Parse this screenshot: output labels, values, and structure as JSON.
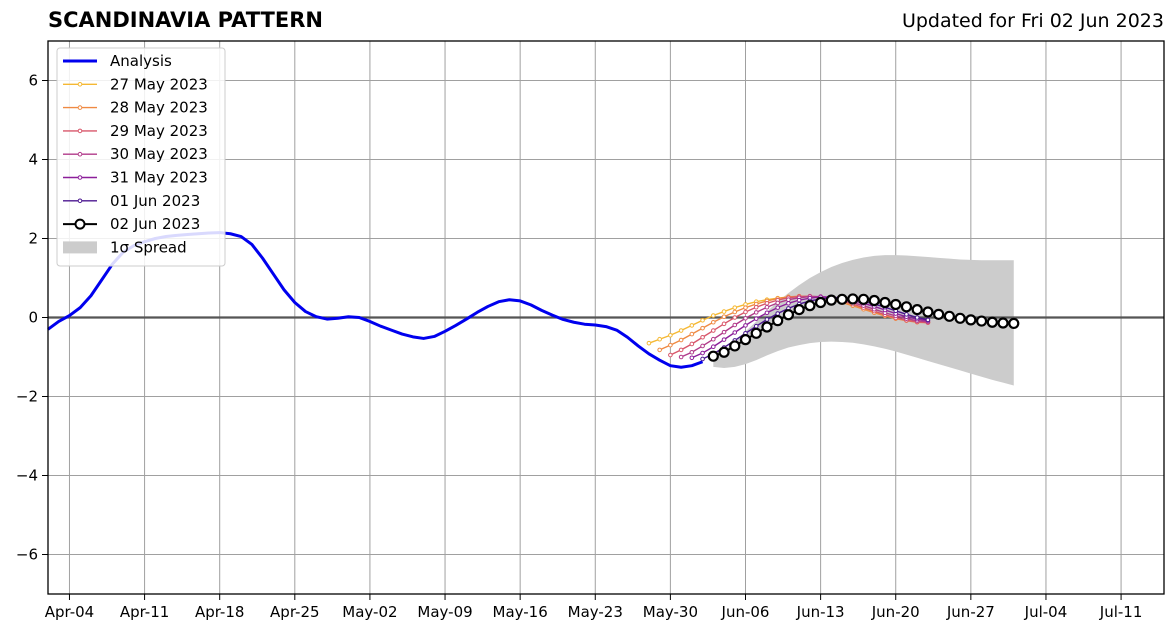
{
  "header": {
    "title": "SCANDINAVIA PATTERN",
    "updated": "Updated for Fri 02 Jun 2023"
  },
  "chart_data": {
    "type": "line",
    "title": "SCANDINAVIA PATTERN",
    "subtitle": "Updated for Fri 02 Jun 2023",
    "xlabel": "",
    "ylabel": "",
    "xlim": [
      "2023-04-02",
      "2023-07-15"
    ],
    "ylim": [
      -7,
      7
    ],
    "grid": true,
    "legend_position": "top-left",
    "x_ticks": [
      "2023-04-04",
      "2023-04-11",
      "2023-04-18",
      "2023-04-25",
      "2023-05-02",
      "2023-05-09",
      "2023-05-16",
      "2023-05-23",
      "2023-05-30",
      "2023-06-06",
      "2023-06-13",
      "2023-06-20",
      "2023-06-27",
      "2023-07-04",
      "2023-07-11"
    ],
    "x_tick_labels": [
      "Apr-04",
      "Apr-11",
      "Apr-18",
      "Apr-25",
      "May-02",
      "May-09",
      "May-16",
      "May-23",
      "May-30",
      "Jun-06",
      "Jun-13",
      "Jun-20",
      "Jun-27",
      "Jul-04",
      "Jul-11"
    ],
    "y_ticks": [
      -6,
      -4,
      -2,
      0,
      2,
      4,
      6
    ],
    "y_tick_labels": [
      "−6",
      "−4",
      "−2",
      "0",
      "2",
      "4",
      "6"
    ],
    "colors": {
      "analysis": "#0000ee",
      "27 May 2023": "#f5b833",
      "28 May 2023": "#ef8a43",
      "29 May 2023": "#d8566a",
      "30 May 2023": "#b13a8a",
      "31 May 2023": "#8c1f9a",
      "01 Jun 2023": "#4b1790",
      "02 Jun 2023": "#000000",
      "spread": "#cccccc",
      "grid": "#a0a0a0",
      "zero_line": "#555555"
    },
    "legend": [
      "Analysis",
      "27 May 2023",
      "28 May 2023",
      "29 May 2023",
      "30 May 2023",
      "31 May 2023",
      "01 Jun 2023",
      "02 Jun 2023",
      "1σ Spread"
    ],
    "analysis": {
      "name": "Analysis",
      "x": [
        "2023-04-02",
        "2023-04-03",
        "2023-04-04",
        "2023-04-05",
        "2023-04-06",
        "2023-04-07",
        "2023-04-08",
        "2023-04-09",
        "2023-04-10",
        "2023-04-11",
        "2023-04-12",
        "2023-04-13",
        "2023-04-14",
        "2023-04-15",
        "2023-04-16",
        "2023-04-17",
        "2023-04-18",
        "2023-04-19",
        "2023-04-20",
        "2023-04-21",
        "2023-04-22",
        "2023-04-23",
        "2023-04-24",
        "2023-04-25",
        "2023-04-26",
        "2023-04-27",
        "2023-04-28",
        "2023-04-29",
        "2023-04-30",
        "2023-05-01",
        "2023-05-02",
        "2023-05-03",
        "2023-05-04",
        "2023-05-05",
        "2023-05-06",
        "2023-05-07",
        "2023-05-08",
        "2023-05-09",
        "2023-05-10",
        "2023-05-11",
        "2023-05-12",
        "2023-05-13",
        "2023-05-14",
        "2023-05-15",
        "2023-05-16",
        "2023-05-17",
        "2023-05-18",
        "2023-05-19",
        "2023-05-20",
        "2023-05-21",
        "2023-05-22",
        "2023-05-23",
        "2023-05-24",
        "2023-05-25",
        "2023-05-26",
        "2023-05-27",
        "2023-05-28",
        "2023-05-29",
        "2023-05-30",
        "2023-05-31",
        "2023-06-01",
        "2023-06-02"
      ],
      "y": [
        -0.3,
        -0.1,
        0.05,
        0.25,
        0.55,
        0.95,
        1.35,
        1.65,
        1.82,
        1.92,
        2.0,
        2.05,
        2.08,
        2.1,
        2.12,
        2.14,
        2.15,
        2.12,
        2.05,
        1.85,
        1.5,
        1.1,
        0.7,
        0.38,
        0.15,
        0.02,
        -0.04,
        -0.02,
        0.02,
        0.0,
        -0.1,
        -0.22,
        -0.32,
        -0.42,
        -0.49,
        -0.53,
        -0.48,
        -0.35,
        -0.2,
        -0.04,
        0.13,
        0.28,
        0.4,
        0.45,
        0.42,
        0.32,
        0.18,
        0.06,
        -0.05,
        -0.12,
        -0.17,
        -0.19,
        -0.23,
        -0.32,
        -0.5,
        -0.72,
        -0.92,
        -1.08,
        -1.22,
        -1.26,
        -1.22,
        -1.12
      ]
    },
    "series": [
      {
        "name": "27 May 2023",
        "x_start": "2023-05-28",
        "y": [
          -0.65,
          -0.55,
          -0.45,
          -0.33,
          -0.2,
          -0.07,
          0.05,
          0.15,
          0.25,
          0.33,
          0.4,
          0.45,
          0.49,
          0.52,
          0.53,
          0.52,
          0.5,
          0.45,
          0.38,
          0.3,
          0.22,
          0.13,
          0.05,
          -0.02,
          -0.07,
          -0.1,
          -0.12
        ]
      },
      {
        "name": "28 May 2023",
        "x_start": "2023-05-29",
        "y": [
          -0.82,
          -0.7,
          -0.57,
          -0.42,
          -0.27,
          -0.12,
          0.02,
          0.14,
          0.25,
          0.34,
          0.42,
          0.48,
          0.52,
          0.54,
          0.53,
          0.5,
          0.45,
          0.38,
          0.3,
          0.21,
          0.12,
          0.04,
          -0.03,
          -0.08,
          -0.12,
          -0.13
        ]
      },
      {
        "name": "29 May 2023",
        "x_start": "2023-05-30",
        "y": [
          -0.95,
          -0.82,
          -0.67,
          -0.5,
          -0.33,
          -0.16,
          0.0,
          0.14,
          0.26,
          0.36,
          0.44,
          0.5,
          0.53,
          0.54,
          0.52,
          0.48,
          0.42,
          0.34,
          0.25,
          0.16,
          0.07,
          -0.01,
          -0.07,
          -0.11,
          -0.13
        ]
      },
      {
        "name": "30 May 2023",
        "x_start": "2023-05-31",
        "y": [
          -1.0,
          -0.88,
          -0.72,
          -0.55,
          -0.37,
          -0.19,
          -0.02,
          0.13,
          0.26,
          0.37,
          0.45,
          0.5,
          0.53,
          0.53,
          0.5,
          0.45,
          0.38,
          0.3,
          0.21,
          0.12,
          0.04,
          -0.03,
          -0.08,
          -0.11
        ]
      },
      {
        "name": "31 May 2023",
        "x_start": "2023-06-01",
        "y": [
          -1.02,
          -0.9,
          -0.74,
          -0.56,
          -0.38,
          -0.2,
          -0.03,
          0.12,
          0.25,
          0.36,
          0.44,
          0.49,
          0.52,
          0.52,
          0.49,
          0.43,
          0.36,
          0.28,
          0.19,
          0.1,
          0.02,
          -0.04,
          -0.08
        ]
      },
      {
        "name": "01 Jun 2023",
        "x_start": "2023-06-02",
        "y": [
          -1.05,
          -0.92,
          -0.76,
          -0.58,
          -0.4,
          -0.22,
          -0.05,
          0.1,
          0.23,
          0.34,
          0.42,
          0.47,
          0.5,
          0.5,
          0.47,
          0.41,
          0.34,
          0.26,
          0.17,
          0.08,
          0.0,
          -0.06
        ]
      },
      {
        "name": "02 Jun 2023",
        "x_start": "2023-06-03",
        "y": [
          -0.98,
          -0.88,
          -0.72,
          -0.56,
          -0.4,
          -0.24,
          -0.08,
          0.07,
          0.2,
          0.3,
          0.38,
          0.44,
          0.46,
          0.47,
          0.46,
          0.43,
          0.38,
          0.33,
          0.27,
          0.2,
          0.14,
          0.08,
          0.03,
          -0.02,
          -0.06,
          -0.09,
          -0.12,
          -0.14,
          -0.15
        ]
      }
    ],
    "spread": {
      "name": "1σ Spread",
      "x_start": "2023-06-03",
      "upper": [
        -1.05,
        -0.85,
        -0.6,
        -0.35,
        -0.1,
        0.15,
        0.4,
        0.62,
        0.82,
        1.0,
        1.15,
        1.28,
        1.38,
        1.46,
        1.52,
        1.56,
        1.58,
        1.58,
        1.57,
        1.55,
        1.53,
        1.51,
        1.49,
        1.47,
        1.46,
        1.45,
        1.45,
        1.45,
        1.45
      ],
      "lower": [
        -1.25,
        -1.28,
        -1.25,
        -1.18,
        -1.08,
        -0.96,
        -0.85,
        -0.76,
        -0.7,
        -0.65,
        -0.62,
        -0.61,
        -0.62,
        -0.64,
        -0.68,
        -0.73,
        -0.79,
        -0.86,
        -0.94,
        -1.02,
        -1.1,
        -1.18,
        -1.26,
        -1.34,
        -1.42,
        -1.5,
        -1.58,
        -1.65,
        -1.72
      ]
    }
  }
}
